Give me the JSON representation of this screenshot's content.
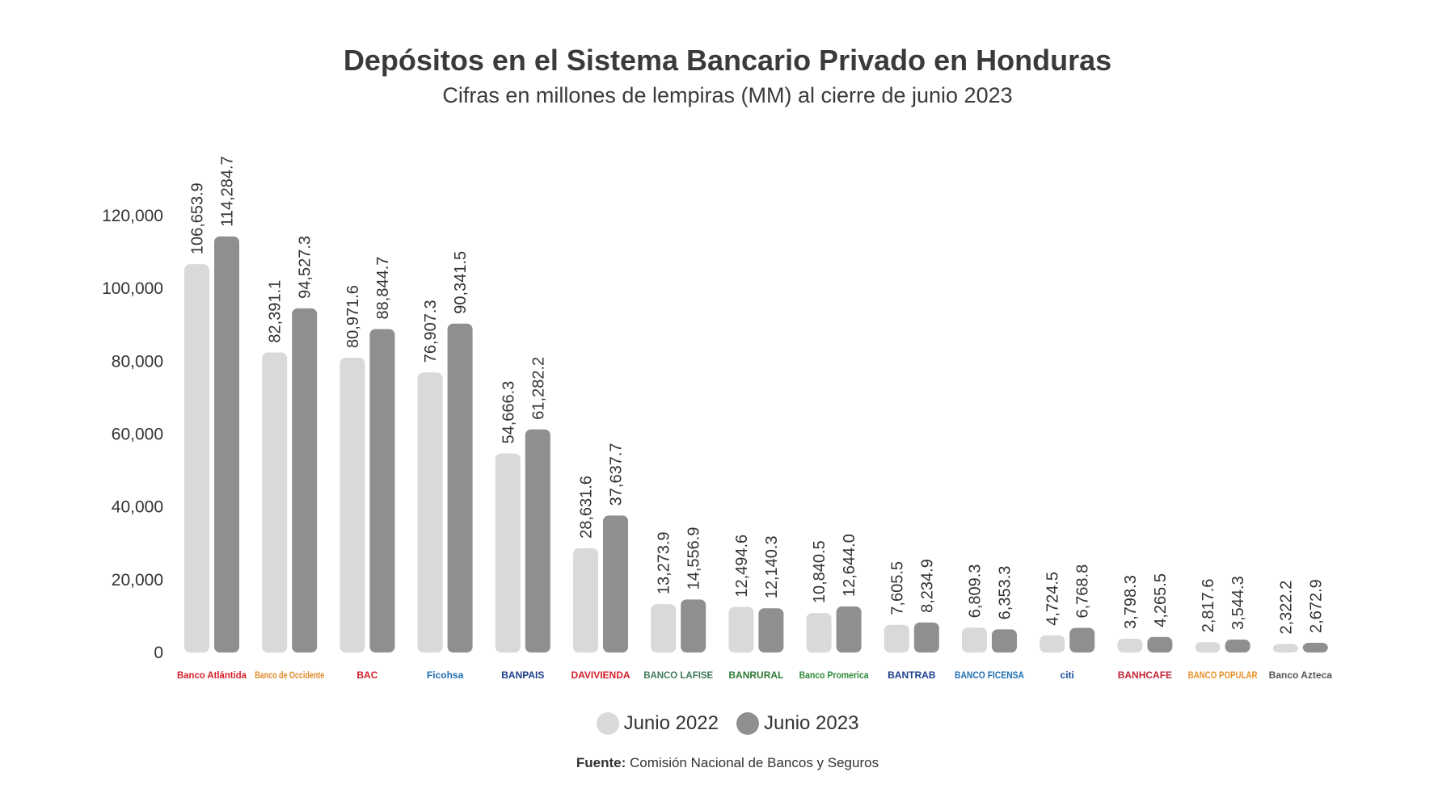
{
  "colors": {
    "series_2022": "#d9d9d9",
    "series_2023": "#8f8f8f"
  },
  "source": {
    "label": "Fuente:",
    "text": "Comisión Nacional de Bancos y Seguros"
  },
  "chart_data": {
    "type": "bar",
    "title": "Depósitos en el Sistema Bancario Privado en Honduras",
    "subtitle": "Cifras en millones de lempiras (MM) al cierre de junio 2023",
    "xlabel": "",
    "ylabel": "",
    "ylim": [
      0,
      120000
    ],
    "yticks": [
      0,
      20000,
      40000,
      60000,
      80000,
      100000,
      120000
    ],
    "ytick_labels": [
      "0",
      "20,000",
      "40,000",
      "60,000",
      "80,000",
      "100,000",
      "120,000"
    ],
    "grid": false,
    "legend_position": "bottom-center",
    "categories": [
      {
        "name": "Banco Atlántida",
        "logo_text": "Banco Atlántida",
        "logo_color": "#d4202b"
      },
      {
        "name": "Banco de Occidente",
        "logo_text": "Banco de Occidente",
        "logo_color": "#e08a2a"
      },
      {
        "name": "BAC",
        "logo_text": "BAC",
        "logo_color": "#d4202b"
      },
      {
        "name": "Ficohsa",
        "logo_text": "Ficohsa",
        "logo_color": "#1f6fb2"
      },
      {
        "name": "Banpaís",
        "logo_text": "BANPAIS",
        "logo_color": "#1d3f8c"
      },
      {
        "name": "Davivienda",
        "logo_text": "DAVIVIENDA",
        "logo_color": "#d4202b"
      },
      {
        "name": "Banco Lafise",
        "logo_text": "BANCO LAFISE",
        "logo_color": "#3f7a5a"
      },
      {
        "name": "Banrural",
        "logo_text": "BANRURAL",
        "logo_color": "#2d7a35"
      },
      {
        "name": "Banco Promerica",
        "logo_text": "Banco Promerica",
        "logo_color": "#2e8b3a"
      },
      {
        "name": "BanTrab",
        "logo_text": "BANTRAB",
        "logo_color": "#1d3f8c"
      },
      {
        "name": "Banco Ficensa",
        "logo_text": "BANCO FICENSA",
        "logo_color": "#1f6fb2"
      },
      {
        "name": "Citi",
        "logo_text": "citi",
        "logo_color": "#1d4f9c"
      },
      {
        "name": "Banhcafé",
        "logo_text": "BANHCAFE",
        "logo_color": "#c0243b"
      },
      {
        "name": "Banco Popular",
        "logo_text": "BANCO POPULAR",
        "logo_color": "#e8912a"
      },
      {
        "name": "Banco Azteca",
        "logo_text": "Banco Azteca",
        "logo_color": "#555555"
      }
    ],
    "series": [
      {
        "name": "Junio 2022",
        "values": [
          106653.9,
          82391.1,
          80971.6,
          76907.3,
          54666.3,
          28631.6,
          13273.9,
          12494.6,
          10840.5,
          7605.5,
          6809.3,
          4724.5,
          3798.3,
          2817.6,
          2322.2
        ],
        "labels": [
          "106,653.9",
          "82,391.1",
          "80,971.6",
          "76,907.3",
          "54,666.3",
          "28,631.6",
          "13,273.9",
          "12,494.6",
          "10,840.5",
          "7,605.5",
          "6,809.3",
          "4,724.5",
          "3,798.3",
          "2,817.6",
          "2,322.2"
        ]
      },
      {
        "name": "Junio 2023",
        "values": [
          114284.7,
          94527.3,
          88844.7,
          90341.5,
          61282.2,
          37637.7,
          14556.9,
          12140.3,
          12644.0,
          8234.9,
          6353.3,
          6768.8,
          4265.5,
          3544.3,
          2672.9
        ],
        "labels": [
          "114,284.7",
          "94,527.3",
          "88,844.7",
          "90,341.5",
          "61,282.2",
          "37,637.7",
          "14,556.9",
          "12,140.3",
          "12,644.0",
          "8,234.9",
          "6,353.3",
          "6,768.8",
          "4,265.5",
          "3,544.3",
          "2,672.9"
        ]
      }
    ]
  }
}
